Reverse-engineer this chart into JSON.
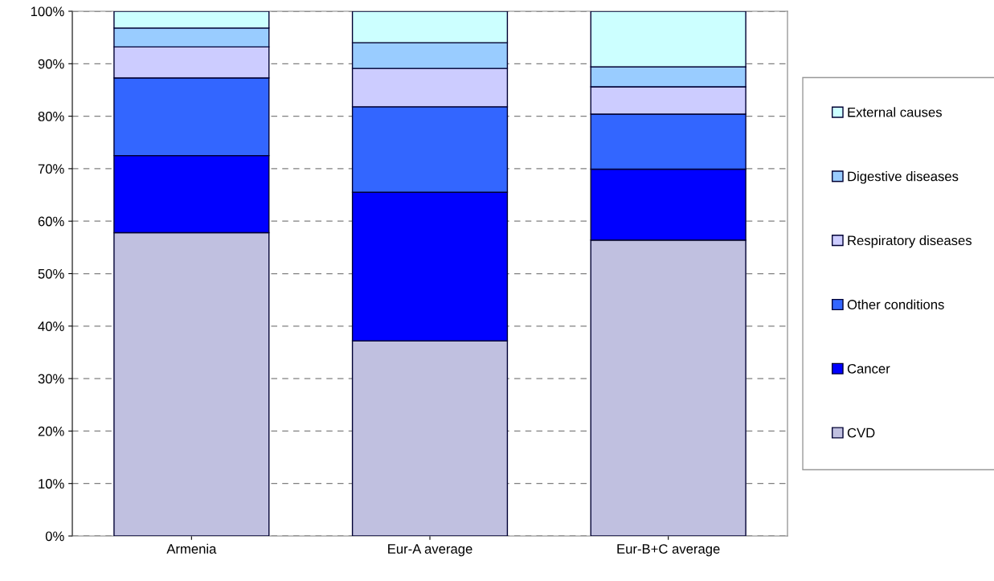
{
  "chart_data": {
    "type": "bar",
    "stacked": true,
    "categories": [
      "Armenia",
      "Eur-A average",
      "Eur-B+C average"
    ],
    "series": [
      {
        "name": "CVD",
        "color": "#c0c0e0",
        "values": [
          57.8,
          37.2,
          56.4
        ]
      },
      {
        "name": "Cancer",
        "color": "#0000ff",
        "values": [
          14.7,
          28.3,
          13.5
        ]
      },
      {
        "name": "Other conditions",
        "color": "#3366ff",
        "values": [
          14.8,
          16.3,
          10.5
        ]
      },
      {
        "name": "Respiratory diseases",
        "color": "#ccccff",
        "values": [
          5.9,
          7.3,
          5.2
        ]
      },
      {
        "name": "Digestive diseases",
        "color": "#99ccff",
        "values": [
          3.6,
          4.9,
          3.8
        ]
      },
      {
        "name": "External causes",
        "color": "#ccffff",
        "values": [
          3.2,
          6.0,
          10.6
        ]
      }
    ],
    "ylim": [
      0,
      100
    ],
    "yticks": [
      {
        "value": 0,
        "label": "0%"
      },
      {
        "value": 10,
        "label": "10%"
      },
      {
        "value": 20,
        "label": "20%"
      },
      {
        "value": 30,
        "label": "30%"
      },
      {
        "value": 40,
        "label": "40%"
      },
      {
        "value": 50,
        "label": "50%"
      },
      {
        "value": 60,
        "label": "60%"
      },
      {
        "value": 70,
        "label": "70%"
      },
      {
        "value": 80,
        "label": "80%"
      },
      {
        "value": 90,
        "label": "90%"
      },
      {
        "value": 100,
        "label": "100%"
      }
    ],
    "grid": "y",
    "legend": "right"
  }
}
